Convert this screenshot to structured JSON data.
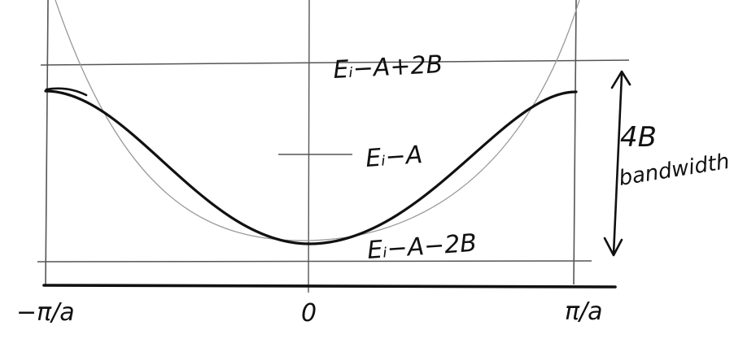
{
  "labels": {
    "top_level": "Eᵢ−A+2B",
    "center_level": "Eᵢ−A",
    "bottom_level": "Eᵢ−A−2B",
    "bandwidth_value": "4B",
    "bandwidth_word": "bandwidth",
    "x_left": "−π/a",
    "x_center": "0",
    "x_right": "π/a"
  },
  "colors": {
    "ink": "#111111",
    "thin_line": "#555555",
    "parabola": "#9a9a9a"
  }
}
